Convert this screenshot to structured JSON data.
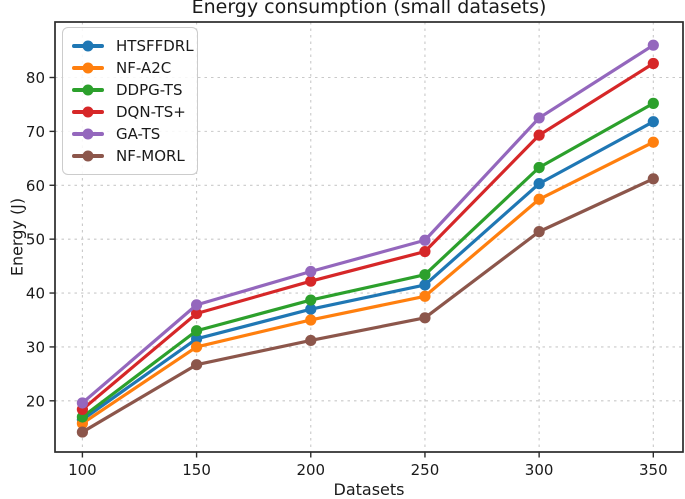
{
  "chart_data": {
    "type": "line",
    "title": "Energy consumption (small datasets)",
    "xlabel": "Datasets",
    "ylabel": "Energy (J)",
    "x": [
      100,
      150,
      200,
      250,
      300,
      350
    ],
    "xticks": [
      100,
      150,
      200,
      250,
      300,
      350
    ],
    "yticks": [
      20,
      30,
      40,
      50,
      60,
      70,
      80
    ],
    "xlim": [
      88,
      363
    ],
    "ylim": [
      10.5,
      90.3
    ],
    "grid": true,
    "grid_style": "dashed",
    "legend_position": "upper-left",
    "marker": "circle",
    "series": [
      {
        "name": "HTSFFDRL",
        "color": "#1f77b4",
        "values": [
          16.5,
          31.5,
          37.0,
          41.5,
          60.3,
          71.8
        ]
      },
      {
        "name": "NF-A2C",
        "color": "#ff7f0e",
        "values": [
          15.8,
          30.0,
          35.0,
          39.4,
          57.4,
          68.0
        ]
      },
      {
        "name": "DDPG-TS",
        "color": "#2ca02c",
        "values": [
          17.0,
          33.0,
          38.7,
          43.4,
          63.3,
          75.2
        ]
      },
      {
        "name": "DQN-TS+",
        "color": "#d62728",
        "values": [
          18.4,
          36.2,
          42.2,
          47.7,
          69.3,
          82.6
        ]
      },
      {
        "name": "GA-TS",
        "color": "#9467bd",
        "values": [
          19.6,
          37.8,
          44.0,
          49.8,
          72.5,
          86.0
        ]
      },
      {
        "name": "NF-MORL",
        "color": "#8c564b",
        "values": [
          14.2,
          26.7,
          31.2,
          35.4,
          51.4,
          61.2
        ]
      }
    ]
  },
  "colors": {
    "background": "#ffffff",
    "grid": "#c9c9c9",
    "spine": "#2b2b2b",
    "text": "#1a1a1a",
    "legend_border": "#cccccc"
  }
}
